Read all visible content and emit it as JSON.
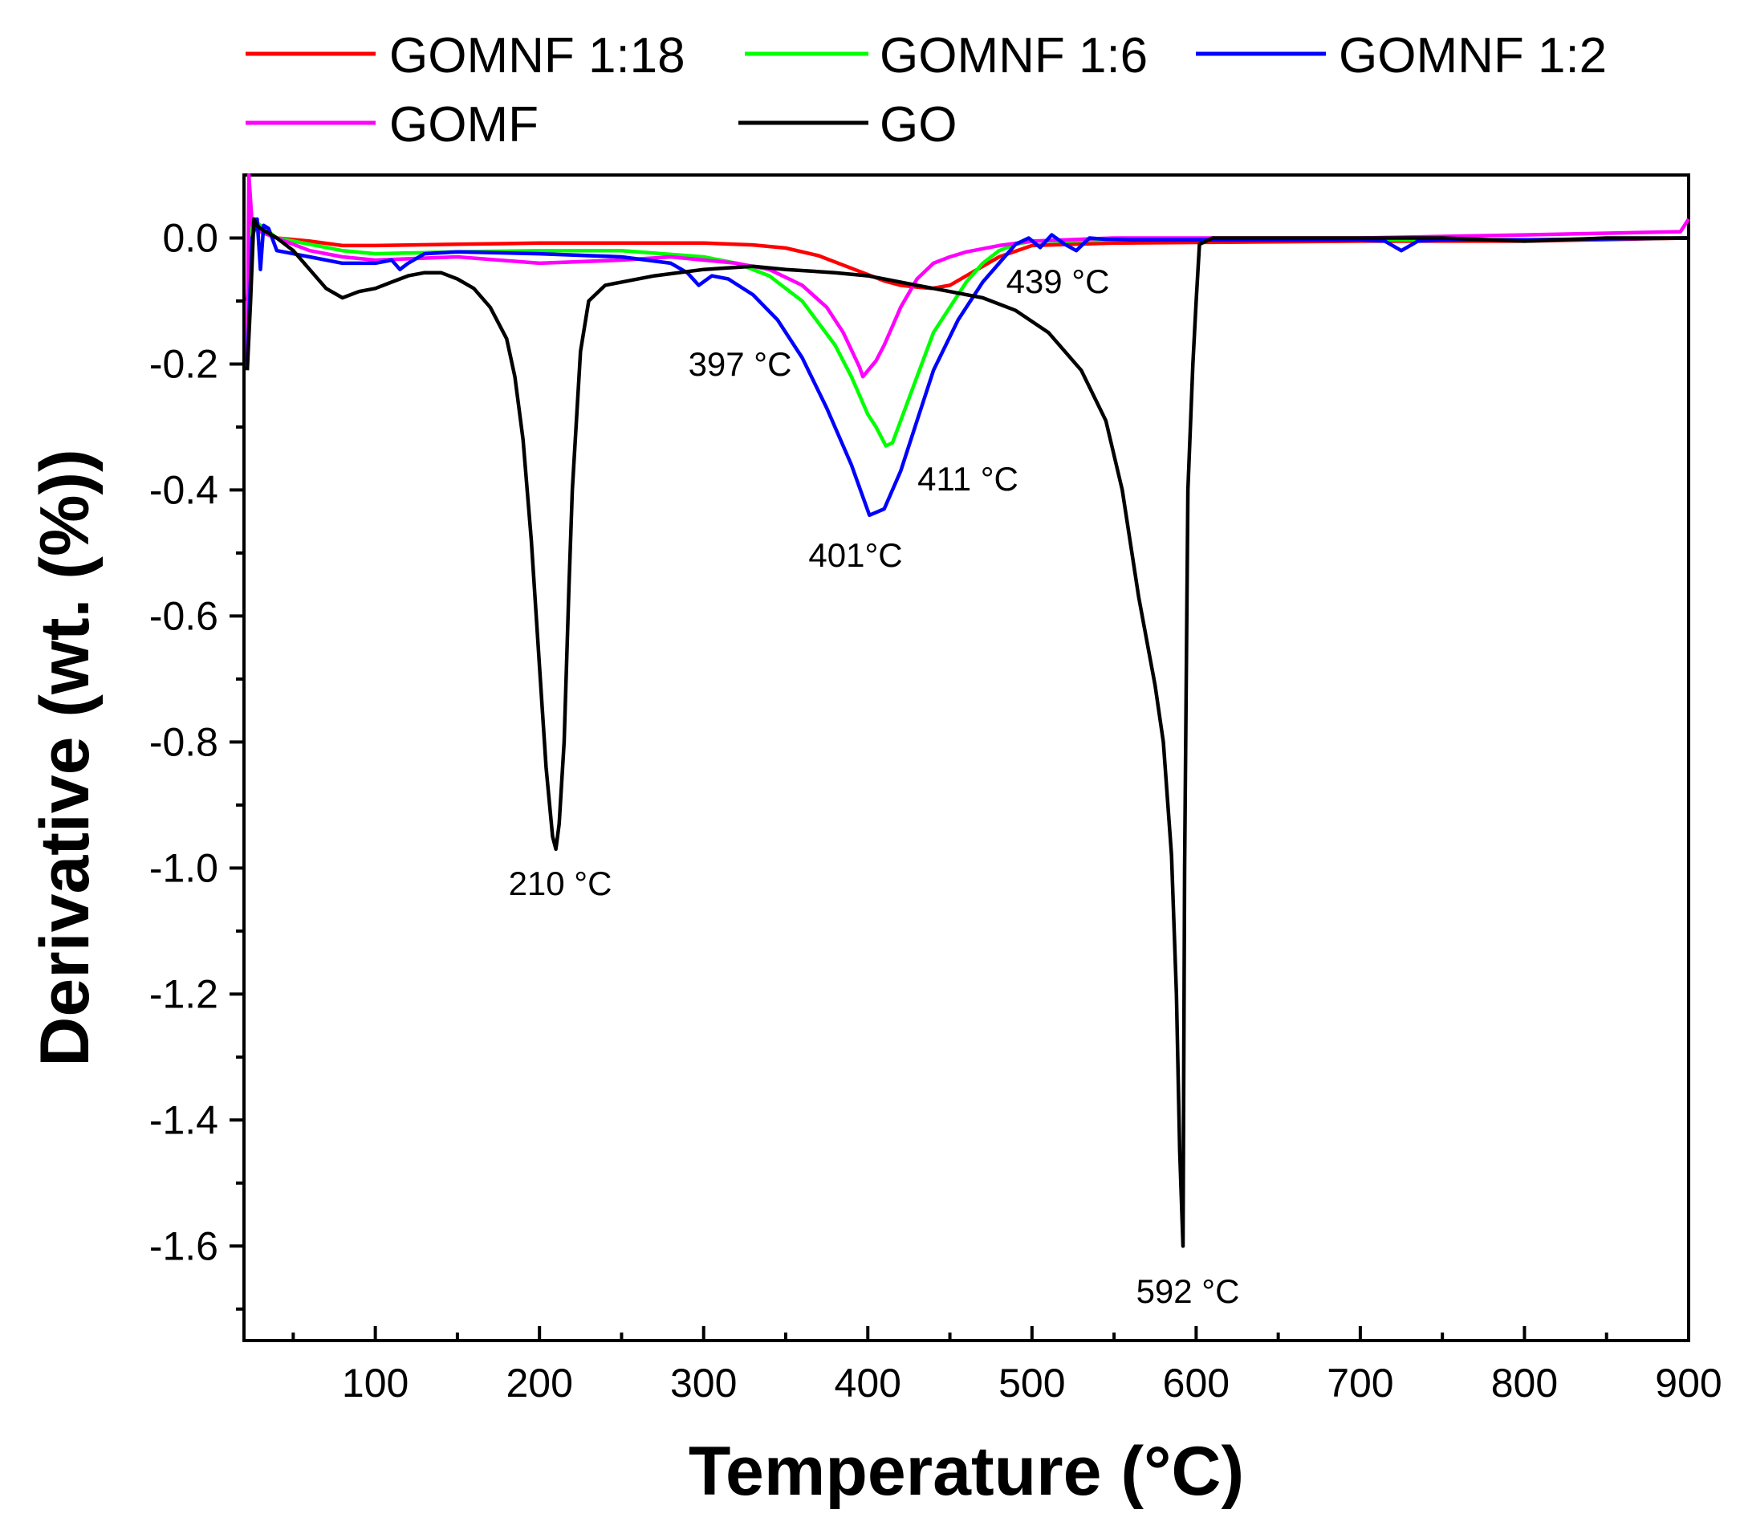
{
  "chart_data": {
    "type": "line",
    "title": "",
    "xlabel": "Temperature (°C)",
    "ylabel": "Derivative (wt. (%))",
    "xlim": [
      20,
      900
    ],
    "ylim": [
      -1.75,
      0.1
    ],
    "xticks": [
      100,
      200,
      300,
      400,
      500,
      600,
      700,
      800,
      900
    ],
    "yticks": [
      0.0,
      -0.2,
      -0.4,
      -0.6,
      -0.8,
      -1.0,
      -1.2,
      -1.4,
      -1.6
    ],
    "ytick_labels": [
      "0.0",
      "-0.2",
      "-0.4",
      "-0.6",
      "-0.8",
      "-1.0",
      "-1.2",
      "-1.4",
      "-1.6"
    ],
    "grid": false,
    "legend_position": "top",
    "series": [
      {
        "name": "GOMNF 1:18",
        "color": "#ff0000",
        "x": [
          22,
          25,
          30,
          40,
          60,
          80,
          100,
          150,
          200,
          250,
          300,
          330,
          350,
          370,
          390,
          410,
          420,
          430,
          439,
          450,
          460,
          480,
          500,
          550,
          600,
          700,
          800,
          900
        ],
        "y": [
          -0.1,
          0.02,
          0.01,
          0.0,
          -0.005,
          -0.012,
          -0.012,
          -0.01,
          -0.008,
          -0.008,
          -0.008,
          -0.011,
          -0.016,
          -0.028,
          -0.048,
          -0.068,
          -0.075,
          -0.078,
          -0.08,
          -0.075,
          -0.06,
          -0.03,
          -0.012,
          -0.008,
          -0.007,
          -0.005,
          -0.005,
          0.0
        ]
      },
      {
        "name": "GOMNF 1:6",
        "color": "#00ff00",
        "x": [
          22,
          25,
          30,
          40,
          60,
          80,
          100,
          150,
          200,
          250,
          300,
          320,
          340,
          360,
          380,
          390,
          400,
          405,
          411,
          415,
          420,
          430,
          440,
          450,
          460,
          470,
          480,
          490,
          500,
          520,
          550,
          600,
          700,
          800,
          900
        ],
        "y": [
          -0.2,
          0.03,
          0.02,
          0.0,
          -0.01,
          -0.02,
          -0.025,
          -0.022,
          -0.02,
          -0.02,
          -0.03,
          -0.04,
          -0.06,
          -0.1,
          -0.17,
          -0.22,
          -0.28,
          -0.3,
          -0.33,
          -0.325,
          -0.29,
          -0.22,
          -0.15,
          -0.11,
          -0.07,
          -0.04,
          -0.02,
          -0.01,
          -0.005,
          -0.005,
          -0.003,
          -0.003,
          -0.003,
          -0.003,
          0.0
        ]
      },
      {
        "name": "GOMNF 1:2",
        "color": "#0000ff",
        "x": [
          22,
          25,
          28,
          30,
          32,
          35,
          40,
          50,
          60,
          80,
          100,
          110,
          115,
          120,
          130,
          150,
          200,
          250,
          280,
          290,
          297,
          305,
          315,
          330,
          345,
          360,
          375,
          390,
          401,
          410,
          420,
          430,
          440,
          455,
          470,
          480,
          490,
          498,
          505,
          512,
          520,
          527,
          535,
          545,
          560,
          600,
          700,
          715,
          725,
          735,
          750,
          800,
          900
        ],
        "y": [
          -0.2,
          0.0,
          0.03,
          -0.05,
          0.02,
          0.015,
          -0.02,
          -0.025,
          -0.03,
          -0.04,
          -0.04,
          -0.035,
          -0.05,
          -0.04,
          -0.025,
          -0.022,
          -0.025,
          -0.03,
          -0.04,
          -0.055,
          -0.075,
          -0.06,
          -0.065,
          -0.09,
          -0.13,
          -0.19,
          -0.27,
          -0.36,
          -0.44,
          -0.43,
          -0.37,
          -0.29,
          -0.21,
          -0.13,
          -0.07,
          -0.04,
          -0.01,
          0.0,
          -0.015,
          0.005,
          -0.01,
          -0.02,
          0.0,
          -0.002,
          -0.003,
          -0.003,
          -0.003,
          -0.005,
          -0.02,
          -0.005,
          -0.003,
          -0.003,
          0.0
        ]
      },
      {
        "name": "GOMF",
        "color": "#ff00ff",
        "x": [
          22,
          23,
          25,
          27,
          30,
          40,
          60,
          80,
          100,
          150,
          200,
          250,
          280,
          300,
          320,
          340,
          360,
          375,
          385,
          395,
          397,
          405,
          410,
          415,
          420,
          430,
          440,
          450,
          460,
          480,
          500,
          550,
          600,
          700,
          800,
          895,
          900
        ],
        "y": [
          -0.2,
          0.1,
          0.02,
          0.03,
          0.01,
          0.0,
          -0.02,
          -0.03,
          -0.035,
          -0.03,
          -0.04,
          -0.035,
          -0.03,
          -0.035,
          -0.04,
          -0.05,
          -0.075,
          -0.11,
          -0.15,
          -0.205,
          -0.22,
          -0.195,
          -0.17,
          -0.14,
          -0.11,
          -0.065,
          -0.04,
          -0.03,
          -0.022,
          -0.012,
          -0.005,
          0.0,
          0.0,
          0.0,
          0.005,
          0.01,
          0.03
        ]
      },
      {
        "name": "GO",
        "color": "#000000",
        "x": [
          22,
          24,
          26,
          28,
          30,
          40,
          50,
          60,
          70,
          80,
          90,
          100,
          110,
          120,
          130,
          140,
          150,
          160,
          170,
          180,
          185,
          190,
          195,
          200,
          204,
          208,
          210,
          212,
          215,
          218,
          220,
          225,
          230,
          240,
          250,
          270,
          300,
          330,
          350,
          380,
          400,
          430,
          450,
          470,
          490,
          510,
          530,
          545,
          555,
          565,
          575,
          580,
          585,
          588,
          590,
          592,
          593,
          595,
          598,
          600,
          602,
          610,
          650,
          700,
          750,
          800,
          850,
          900
        ],
        "y": [
          -0.21,
          -0.1,
          0.03,
          0.02,
          0.015,
          0.0,
          -0.02,
          -0.05,
          -0.08,
          -0.095,
          -0.085,
          -0.08,
          -0.07,
          -0.06,
          -0.055,
          -0.055,
          -0.065,
          -0.08,
          -0.11,
          -0.16,
          -0.22,
          -0.32,
          -0.48,
          -0.68,
          -0.84,
          -0.95,
          -0.97,
          -0.93,
          -0.8,
          -0.55,
          -0.4,
          -0.18,
          -0.1,
          -0.075,
          -0.07,
          -0.06,
          -0.05,
          -0.045,
          -0.05,
          -0.055,
          -0.06,
          -0.075,
          -0.085,
          -0.095,
          -0.115,
          -0.15,
          -0.21,
          -0.29,
          -0.4,
          -0.57,
          -0.71,
          -0.8,
          -0.98,
          -1.2,
          -1.45,
          -1.6,
          -1.0,
          -0.4,
          -0.2,
          -0.1,
          -0.01,
          0.0,
          0.0,
          0.0,
          0.0,
          -0.005,
          0.0,
          0.0
        ]
      }
    ],
    "annotations": [
      {
        "text": "210 °C",
        "x": 210,
        "y": -0.97
      },
      {
        "text": "397 °C",
        "x": 397,
        "y": -0.22
      },
      {
        "text": "411 °C",
        "x": 411,
        "y": -0.33
      },
      {
        "text": "401°C",
        "x": 401,
        "y": -0.44
      },
      {
        "text": "439 °C",
        "x": 439,
        "y": -0.08
      },
      {
        "text": "592 °C",
        "x": 592,
        "y": -1.6
      }
    ]
  }
}
